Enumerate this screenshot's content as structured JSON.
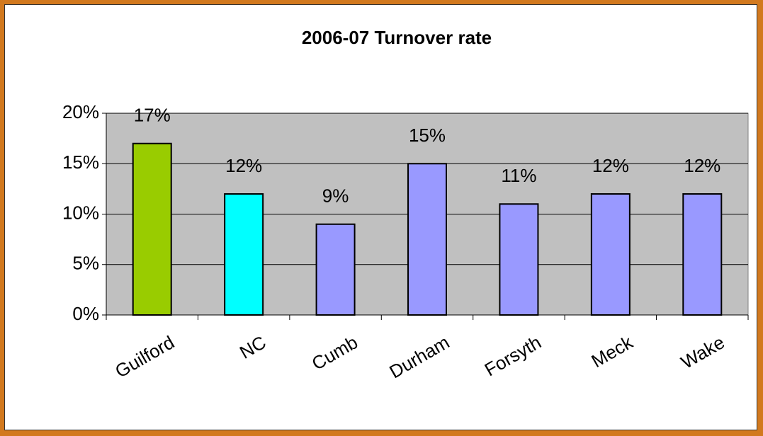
{
  "chart_data": {
    "type": "bar",
    "title": "2006-07 Turnover rate",
    "categories": [
      "Guilford",
      "NC",
      "Cumb",
      "Durham",
      "Forsyth",
      "Meck",
      "Wake"
    ],
    "values": [
      17,
      12,
      9,
      15,
      11,
      12,
      12
    ],
    "value_labels": [
      "17%",
      "12%",
      "9%",
      "15%",
      "11%",
      "12%",
      "12%"
    ],
    "colors": [
      "#99cc00",
      "#00ffff",
      "#9999ff",
      "#9999ff",
      "#9999ff",
      "#9999ff",
      "#9999ff"
    ],
    "ylim": [
      0,
      20
    ],
    "yticks": [
      {
        "value": 0,
        "label": "0%"
      },
      {
        "value": 5,
        "label": "5%"
      },
      {
        "value": 10,
        "label": "10%"
      },
      {
        "value": 15,
        "label": "15%"
      },
      {
        "value": 20,
        "label": "20%"
      }
    ],
    "grid": true,
    "plot_background": "#c0c0c0"
  }
}
